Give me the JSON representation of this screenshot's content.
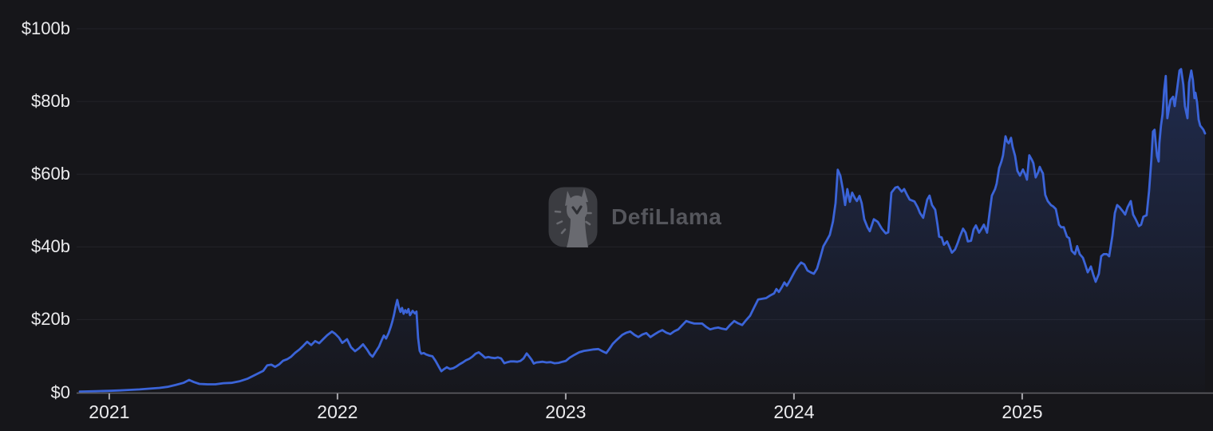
{
  "watermark": {
    "text": "DefiLlama"
  },
  "theme": {
    "background": "#16161a",
    "grid": "#232329",
    "axis": "#626267",
    "tick": "#a6a6ab",
    "label": "#ebebed",
    "line": "#3b64d8",
    "area_top": "rgba(59,100,216,0.30)",
    "area_bottom": "rgba(59,100,216,0.01)",
    "watermark_text_color": "#55565c",
    "logo_bg": "#3b3c41",
    "logo_fg": "#696a70",
    "logo_accent": "#2e2f34"
  },
  "chart_data": {
    "type": "area",
    "xlabel": "",
    "ylabel": "",
    "grid": true,
    "legend_position": "none",
    "x_range": [
      2020.871,
      2025.801
    ],
    "y_range": [
      0,
      100
    ],
    "y_ticks": [
      {
        "label": "$0",
        "value": 0
      },
      {
        "label": "$20b",
        "value": 20
      },
      {
        "label": "$40b",
        "value": 40
      },
      {
        "label": "$60b",
        "value": 60
      },
      {
        "label": "$80b",
        "value": 80
      },
      {
        "label": "$100b",
        "value": 100
      }
    ],
    "x_ticks": [
      {
        "label": "2021",
        "value": 2021
      },
      {
        "label": "2022",
        "value": 2022
      },
      {
        "label": "2023",
        "value": 2023
      },
      {
        "label": "2024",
        "value": 2024
      },
      {
        "label": "2025",
        "value": 2025
      }
    ],
    "points": [
      [
        2020.871,
        0.2
      ],
      [
        2020.906,
        0.25
      ],
      [
        2020.941,
        0.3
      ],
      [
        2021.0,
        0.4
      ],
      [
        2021.045,
        0.5
      ],
      [
        2021.091,
        0.65
      ],
      [
        2021.133,
        0.8
      ],
      [
        2021.178,
        1.0
      ],
      [
        2021.22,
        1.2
      ],
      [
        2021.255,
        1.5
      ],
      [
        2021.29,
        2.0
      ],
      [
        2021.325,
        2.6
      ],
      [
        2021.35,
        3.4
      ],
      [
        2021.371,
        2.8
      ],
      [
        2021.395,
        2.3
      ],
      [
        2021.43,
        2.2
      ],
      [
        2021.465,
        2.2
      ],
      [
        2021.5,
        2.5
      ],
      [
        2021.535,
        2.6
      ],
      [
        2021.57,
        3.0
      ],
      [
        2021.605,
        3.7
      ],
      [
        2021.64,
        4.8
      ],
      [
        2021.675,
        5.9
      ],
      [
        2021.692,
        7.4
      ],
      [
        2021.71,
        7.6
      ],
      [
        2021.727,
        7.0
      ],
      [
        2021.745,
        7.7
      ],
      [
        2021.762,
        8.7
      ],
      [
        2021.78,
        9.1
      ],
      [
        2021.797,
        9.8
      ],
      [
        2021.815,
        10.9
      ],
      [
        2021.832,
        11.7
      ],
      [
        2021.85,
        12.8
      ],
      [
        2021.867,
        13.9
      ],
      [
        2021.885,
        13.0
      ],
      [
        2021.902,
        14.1
      ],
      [
        2021.92,
        13.5
      ],
      [
        2021.937,
        14.6
      ],
      [
        2021.955,
        15.7
      ],
      [
        2021.976,
        16.7
      ],
      [
        2021.99,
        16.1
      ],
      [
        2022.007,
        15.0
      ],
      [
        2022.021,
        13.6
      ],
      [
        2022.042,
        14.6
      ],
      [
        2022.059,
        12.4
      ],
      [
        2022.077,
        11.3
      ],
      [
        2022.094,
        12.1
      ],
      [
        2022.112,
        13.2
      ],
      [
        2022.129,
        11.8
      ],
      [
        2022.143,
        10.4
      ],
      [
        2022.154,
        9.8
      ],
      [
        2022.168,
        11.2
      ],
      [
        2022.182,
        12.6
      ],
      [
        2022.192,
        14.1
      ],
      [
        2022.203,
        15.6
      ],
      [
        2022.213,
        14.8
      ],
      [
        2022.224,
        16.3
      ],
      [
        2022.234,
        18.1
      ],
      [
        2022.241,
        19.6
      ],
      [
        2022.248,
        21.4
      ],
      [
        2022.255,
        23.6
      ],
      [
        2022.262,
        25.4
      ],
      [
        2022.269,
        23.4
      ],
      [
        2022.276,
        22.1
      ],
      [
        2022.283,
        23.2
      ],
      [
        2022.29,
        21.6
      ],
      [
        2022.297,
        22.6
      ],
      [
        2022.304,
        21.9
      ],
      [
        2022.311,
        22.9
      ],
      [
        2022.318,
        21.2
      ],
      [
        2022.329,
        22.4
      ],
      [
        2022.339,
        21.7
      ],
      [
        2022.346,
        22.2
      ],
      [
        2022.353,
        15.0
      ],
      [
        2022.36,
        11.4
      ],
      [
        2022.367,
        10.6
      ],
      [
        2022.378,
        10.8
      ],
      [
        2022.388,
        10.4
      ],
      [
        2022.402,
        10.1
      ],
      [
        2022.416,
        9.9
      ],
      [
        2022.43,
        8.6
      ],
      [
        2022.444,
        7.0
      ],
      [
        2022.455,
        5.8
      ],
      [
        2022.465,
        6.3
      ],
      [
        2022.479,
        6.9
      ],
      [
        2022.493,
        6.4
      ],
      [
        2022.507,
        6.6
      ],
      [
        2022.521,
        7.1
      ],
      [
        2022.535,
        7.7
      ],
      [
        2022.549,
        8.2
      ],
      [
        2022.563,
        8.8
      ],
      [
        2022.577,
        9.2
      ],
      [
        2022.591,
        9.8
      ],
      [
        2022.605,
        10.6
      ],
      [
        2022.619,
        11.0
      ],
      [
        2022.633,
        10.3
      ],
      [
        2022.647,
        9.5
      ],
      [
        2022.661,
        9.7
      ],
      [
        2022.675,
        9.5
      ],
      [
        2022.689,
        9.4
      ],
      [
        2022.703,
        9.6
      ],
      [
        2022.717,
        9.3
      ],
      [
        2022.731,
        8.0
      ],
      [
        2022.745,
        8.3
      ],
      [
        2022.759,
        8.5
      ],
      [
        2022.773,
        8.5
      ],
      [
        2022.787,
        8.4
      ],
      [
        2022.801,
        8.6
      ],
      [
        2022.815,
        9.3
      ],
      [
        2022.829,
        10.7
      ],
      [
        2022.839,
        9.9
      ],
      [
        2022.85,
        9.0
      ],
      [
        2022.86,
        7.9
      ],
      [
        2022.871,
        8.2
      ],
      [
        2022.885,
        8.3
      ],
      [
        2022.899,
        8.4
      ],
      [
        2022.916,
        8.2
      ],
      [
        2022.934,
        8.3
      ],
      [
        2022.951,
        8.0
      ],
      [
        2022.969,
        8.1
      ],
      [
        2022.986,
        8.4
      ],
      [
        2023.0,
        8.6
      ],
      [
        2023.017,
        9.5
      ],
      [
        2023.038,
        10.3
      ],
      [
        2023.059,
        11.0
      ],
      [
        2023.08,
        11.4
      ],
      [
        2023.101,
        11.6
      ],
      [
        2023.122,
        11.8
      ],
      [
        2023.143,
        11.9
      ],
      [
        2023.164,
        11.2
      ],
      [
        2023.178,
        10.8
      ],
      [
        2023.192,
        12.0
      ],
      [
        2023.206,
        13.3
      ],
      [
        2023.22,
        14.2
      ],
      [
        2023.234,
        15.0
      ],
      [
        2023.248,
        15.8
      ],
      [
        2023.266,
        16.4
      ],
      [
        2023.283,
        16.7
      ],
      [
        2023.301,
        15.8
      ],
      [
        2023.318,
        15.2
      ],
      [
        2023.336,
        15.9
      ],
      [
        2023.353,
        16.3
      ],
      [
        2023.371,
        15.2
      ],
      [
        2023.388,
        15.9
      ],
      [
        2023.406,
        16.6
      ],
      [
        2023.423,
        17.1
      ],
      [
        2023.441,
        16.4
      ],
      [
        2023.458,
        16.0
      ],
      [
        2023.476,
        16.8
      ],
      [
        2023.493,
        17.3
      ],
      [
        2023.511,
        18.5
      ],
      [
        2023.528,
        19.6
      ],
      [
        2023.546,
        19.2
      ],
      [
        2023.563,
        18.9
      ],
      [
        2023.581,
        18.9
      ],
      [
        2023.598,
        18.9
      ],
      [
        2023.615,
        18.0
      ],
      [
        2023.633,
        17.3
      ],
      [
        2023.65,
        17.6
      ],
      [
        2023.668,
        17.8
      ],
      [
        2023.685,
        17.5
      ],
      [
        2023.703,
        17.3
      ],
      [
        2023.72,
        18.5
      ],
      [
        2023.738,
        19.6
      ],
      [
        2023.755,
        19.0
      ],
      [
        2023.773,
        18.5
      ],
      [
        2023.79,
        19.8
      ],
      [
        2023.808,
        21.1
      ],
      [
        2023.825,
        23.3
      ],
      [
        2023.843,
        25.5
      ],
      [
        2023.86,
        25.7
      ],
      [
        2023.878,
        25.9
      ],
      [
        2023.895,
        26.6
      ],
      [
        2023.913,
        27.2
      ],
      [
        2023.923,
        28.4
      ],
      [
        2023.934,
        27.6
      ],
      [
        2023.948,
        29.0
      ],
      [
        2023.958,
        30.2
      ],
      [
        2023.969,
        29.3
      ],
      [
        2023.983,
        30.8
      ],
      [
        2023.993,
        32.0
      ],
      [
        2024.003,
        33.2
      ],
      [
        2024.017,
        34.6
      ],
      [
        2024.031,
        35.7
      ],
      [
        2024.045,
        35.2
      ],
      [
        2024.059,
        33.5
      ],
      [
        2024.073,
        33.0
      ],
      [
        2024.087,
        32.6
      ],
      [
        2024.101,
        34.0
      ],
      [
        2024.115,
        37.0
      ],
      [
        2024.129,
        40.2
      ],
      [
        2024.143,
        41.7
      ],
      [
        2024.157,
        43.3
      ],
      [
        2024.171,
        47.0
      ],
      [
        2024.182,
        52.0
      ],
      [
        2024.192,
        61.2
      ],
      [
        2024.203,
        59.6
      ],
      [
        2024.213,
        56.3
      ],
      [
        2024.224,
        51.5
      ],
      [
        2024.234,
        55.9
      ],
      [
        2024.245,
        52.4
      ],
      [
        2024.255,
        54.9
      ],
      [
        2024.266,
        53.5
      ],
      [
        2024.276,
        52.6
      ],
      [
        2024.287,
        54.0
      ],
      [
        2024.297,
        52.0
      ],
      [
        2024.308,
        47.6
      ],
      [
        2024.322,
        45.4
      ],
      [
        2024.332,
        44.3
      ],
      [
        2024.35,
        47.6
      ],
      [
        2024.367,
        46.9
      ],
      [
        2024.385,
        45.0
      ],
      [
        2024.402,
        43.7
      ],
      [
        2024.413,
        44.0
      ],
      [
        2024.427,
        54.9
      ],
      [
        2024.444,
        56.3
      ],
      [
        2024.455,
        56.5
      ],
      [
        2024.472,
        55.2
      ],
      [
        2024.483,
        55.9
      ],
      [
        2024.497,
        54.1
      ],
      [
        2024.507,
        53.0
      ],
      [
        2024.528,
        52.5
      ],
      [
        2024.542,
        50.9
      ],
      [
        2024.552,
        49.3
      ],
      [
        2024.566,
        48.0
      ],
      [
        2024.584,
        53.0
      ],
      [
        2024.594,
        54.1
      ],
      [
        2024.605,
        51.5
      ],
      [
        2024.619,
        50.2
      ],
      [
        2024.629,
        46.1
      ],
      [
        2024.636,
        42.8
      ],
      [
        2024.647,
        42.6
      ],
      [
        2024.657,
        40.6
      ],
      [
        2024.671,
        41.5
      ],
      [
        2024.682,
        39.9
      ],
      [
        2024.692,
        38.4
      ],
      [
        2024.706,
        39.3
      ],
      [
        2024.717,
        41.0
      ],
      [
        2024.727,
        42.8
      ],
      [
        2024.741,
        45.0
      ],
      [
        2024.752,
        43.9
      ],
      [
        2024.762,
        41.5
      ],
      [
        2024.776,
        41.7
      ],
      [
        2024.787,
        44.8
      ],
      [
        2024.797,
        45.9
      ],
      [
        2024.811,
        43.9
      ],
      [
        2024.822,
        45.0
      ],
      [
        2024.832,
        46.1
      ],
      [
        2024.846,
        43.9
      ],
      [
        2024.857,
        49.3
      ],
      [
        2024.867,
        54.1
      ],
      [
        2024.881,
        55.9
      ],
      [
        2024.888,
        57.4
      ],
      [
        2024.899,
        61.7
      ],
      [
        2024.909,
        63.5
      ],
      [
        2024.916,
        65.2
      ],
      [
        2024.927,
        70.4
      ],
      [
        2024.934,
        69.0
      ],
      [
        2024.941,
        68.5
      ],
      [
        2024.951,
        70.0
      ],
      [
        2024.958,
        67.5
      ],
      [
        2024.969,
        65.0
      ],
      [
        2024.979,
        60.9
      ],
      [
        2024.99,
        59.6
      ],
      [
        2025.003,
        61.3
      ],
      [
        2025.014,
        59.8
      ],
      [
        2025.021,
        58.5
      ],
      [
        2025.031,
        65.2
      ],
      [
        2025.042,
        64.0
      ],
      [
        2025.049,
        63.0
      ],
      [
        2025.059,
        59.1
      ],
      [
        2025.07,
        60.5
      ],
      [
        2025.077,
        62.0
      ],
      [
        2025.084,
        61.0
      ],
      [
        2025.091,
        60.2
      ],
      [
        2025.101,
        54.3
      ],
      [
        2025.112,
        52.6
      ],
      [
        2025.126,
        51.5
      ],
      [
        2025.136,
        51.1
      ],
      [
        2025.147,
        50.4
      ],
      [
        2025.161,
        46.1
      ],
      [
        2025.171,
        45.4
      ],
      [
        2025.182,
        45.4
      ],
      [
        2025.196,
        42.8
      ],
      [
        2025.206,
        42.4
      ],
      [
        2025.217,
        38.9
      ],
      [
        2025.231,
        38.0
      ],
      [
        2025.241,
        40.2
      ],
      [
        2025.252,
        38.0
      ],
      [
        2025.266,
        37.0
      ],
      [
        2025.276,
        35.2
      ],
      [
        2025.287,
        33.0
      ],
      [
        2025.301,
        34.6
      ],
      [
        2025.311,
        32.4
      ],
      [
        2025.322,
        30.4
      ],
      [
        2025.336,
        32.6
      ],
      [
        2025.346,
        37.4
      ],
      [
        2025.357,
        38.0
      ],
      [
        2025.371,
        38.0
      ],
      [
        2025.381,
        37.4
      ],
      [
        2025.395,
        43.0
      ],
      [
        2025.406,
        49.3
      ],
      [
        2025.416,
        51.5
      ],
      [
        2025.427,
        50.9
      ],
      [
        2025.441,
        49.8
      ],
      [
        2025.451,
        48.9
      ],
      [
        2025.462,
        50.9
      ],
      [
        2025.476,
        52.6
      ],
      [
        2025.486,
        48.9
      ],
      [
        2025.497,
        47.6
      ],
      [
        2025.511,
        45.7
      ],
      [
        2025.521,
        46.1
      ],
      [
        2025.531,
        48.3
      ],
      [
        2025.545,
        48.7
      ],
      [
        2025.556,
        55.4
      ],
      [
        2025.566,
        64.1
      ],
      [
        2025.573,
        71.7
      ],
      [
        2025.58,
        72.2
      ],
      [
        2025.584,
        69.3
      ],
      [
        2025.591,
        65.0
      ],
      [
        2025.598,
        63.5
      ],
      [
        2025.601,
        68.5
      ],
      [
        2025.608,
        73.3
      ],
      [
        2025.615,
        76.5
      ],
      [
        2025.622,
        83.0
      ],
      [
        2025.629,
        87.0
      ],
      [
        2025.636,
        75.4
      ],
      [
        2025.643,
        78.0
      ],
      [
        2025.65,
        80.4
      ],
      [
        2025.661,
        81.3
      ],
      [
        2025.668,
        78.7
      ],
      [
        2025.678,
        83.0
      ],
      [
        2025.689,
        88.5
      ],
      [
        2025.696,
        88.9
      ],
      [
        2025.706,
        84.6
      ],
      [
        2025.713,
        78.7
      ],
      [
        2025.724,
        75.4
      ],
      [
        2025.731,
        85.2
      ],
      [
        2025.741,
        88.5
      ],
      [
        2025.748,
        85.9
      ],
      [
        2025.755,
        80.9
      ],
      [
        2025.759,
        82.4
      ],
      [
        2025.766,
        79.8
      ],
      [
        2025.773,
        75.0
      ],
      [
        2025.78,
        73.3
      ],
      [
        2025.787,
        72.8
      ],
      [
        2025.794,
        72.2
      ],
      [
        2025.801,
        71.2
      ]
    ]
  }
}
